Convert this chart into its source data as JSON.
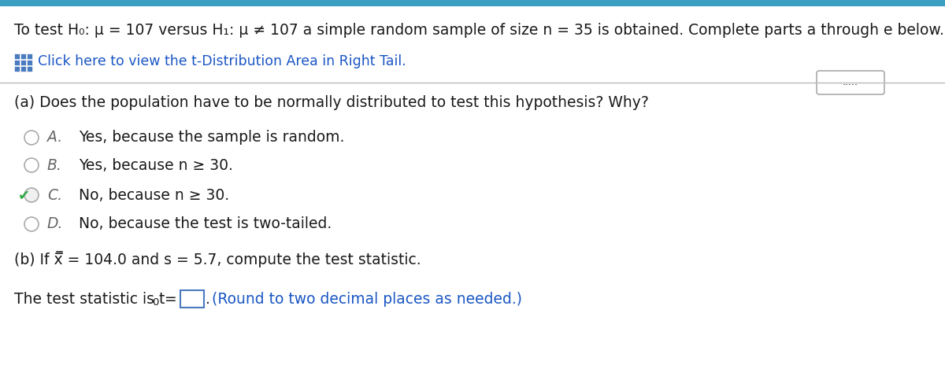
{
  "bg_color": "#ffffff",
  "top_bar_color": "#3a9fc0",
  "title_text": "To test H₀: μ = 107 versus H₁: μ ≠ 107 a simple random sample of size n = 35 is obtained. Complete parts a through e below.",
  "link_text": "Click here to view the t-Distribution Area in Right Tail.",
  "link_icon_color": "#4a7abf",
  "separator_color": "#bbbbbb",
  "dots_text": ".....",
  "part_a_label": "(a) Does the population have to be normally distributed to test this hypothesis? Why?",
  "options": [
    {
      "letter": "A.",
      "text": "Yes, because the sample is random.",
      "correct": false
    },
    {
      "letter": "B.",
      "text": "Yes, because n ≥ 30.",
      "correct": false
    },
    {
      "letter": "C.",
      "text": "No, because n ≥ 30.",
      "correct": true
    },
    {
      "letter": "D.",
      "text": "No, because the test is two-tailed.",
      "correct": false
    }
  ],
  "part_b_label": "(b) If x̅ = 104.0 and s = 5.7, compute the test statistic.",
  "test_stat_hint": "(Round to two decimal places as needed.)",
  "text_color": "#1a1a1a",
  "link_color": "#1a56c4",
  "hint_color": "#1a56c4",
  "radio_border": "#999999",
  "check_color": "#2eaa44",
  "box_border": "#4a7abf",
  "font_size_title": 13.5,
  "font_size_link": 12.5,
  "font_size_body": 13.5,
  "font_size_options": 13.5
}
